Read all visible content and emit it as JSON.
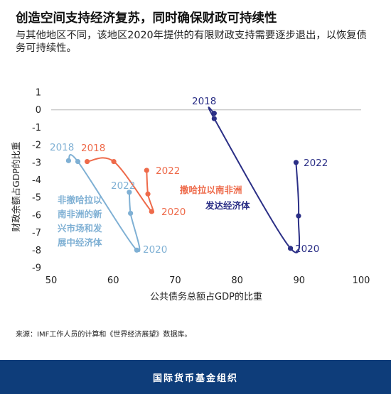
{
  "header": {
    "title": "创造空间支持经济复苏，同时确保财政可持续性",
    "subtitle": "与其他地区不同，该地区2020年提供的有限财政支持需要逐步退出，以恢复债务可持续性。"
  },
  "chart_data": {
    "type": "line",
    "title": "",
    "xlabel": "公共债务总额占GDP的比重",
    "ylabel": "财政余额占GDP的比重",
    "xlim": [
      50,
      100
    ],
    "ylim": [
      -9,
      1
    ],
    "x_ticks": [
      "50",
      "60",
      "70",
      "80",
      "90",
      "100"
    ],
    "y_ticks": [
      "1",
      "0",
      "-1",
      "-2",
      "-3",
      "-4",
      "-5",
      "-6",
      "-7",
      "-8",
      "-9"
    ],
    "zero_line": true,
    "series": [
      {
        "name": "非撤哈拉以南非洲的新兴市场和发展中经济体",
        "label_lines": [
          "非撤哈拉以",
          "南非洲的新",
          "兴市场和发",
          "展中经济体"
        ],
        "color": "#7fb0d4",
        "points": [
          {
            "year": "2018",
            "x": 52.8,
            "y": -2.9
          },
          {
            "year": "2019",
            "x": 54.3,
            "y": -2.95
          },
          {
            "year": "2020",
            "x": 63.8,
            "y": -8.0
          },
          {
            "year": "2021",
            "x": 62.8,
            "y": -5.9
          },
          {
            "year": "2022",
            "x": 62.6,
            "y": -4.7
          }
        ],
        "year_labels": {
          "start": "2018",
          "mid": "2020",
          "end": "2022"
        }
      },
      {
        "name": "撒哈拉以南非洲",
        "color": "#ee6a4a",
        "points": [
          {
            "year": "2018",
            "x": 55.8,
            "y": -2.95
          },
          {
            "year": "2019",
            "x": 60.1,
            "y": -2.95
          },
          {
            "year": "2020",
            "x": 66.2,
            "y": -5.8
          },
          {
            "year": "2021",
            "x": 65.6,
            "y": -4.8
          },
          {
            "year": "2022",
            "x": 65.4,
            "y": -3.45
          }
        ],
        "year_labels": {
          "start": "2018",
          "mid": "2020",
          "end": "2022"
        }
      },
      {
        "name": "发达经济体",
        "color": "#2b2f86",
        "points": [
          {
            "year": "2018",
            "x": 76.3,
            "y": -0.2
          },
          {
            "year": "2019",
            "x": 76.3,
            "y": -0.5
          },
          {
            "year": "2020",
            "x": 88.6,
            "y": -7.9
          },
          {
            "year": "2021",
            "x": 89.9,
            "y": -6.05
          },
          {
            "year": "2022",
            "x": 89.5,
            "y": -3.0
          }
        ],
        "year_labels": {
          "start": "2018",
          "mid": "2020",
          "end": "2022"
        }
      }
    ]
  },
  "source": "来源：IMF工作人员的计算和《世界经济展望》数据库。",
  "footer": {
    "label": "国际货币基金组织"
  }
}
